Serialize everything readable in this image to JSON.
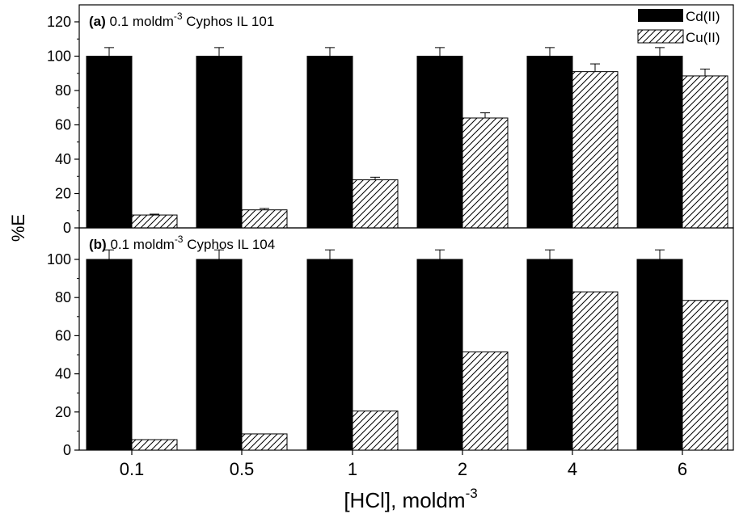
{
  "chart_data": {
    "type": "bar",
    "xlabel": "[HCl], moldm",
    "xlabel_sup": "-3",
    "ylabel": "%E",
    "categories": [
      "0.1",
      "0.5",
      "1",
      "2",
      "4",
      "6"
    ],
    "legend": {
      "placement": "top-right",
      "entries": [
        "Cd(II)",
        "Cu(II)"
      ]
    },
    "grid": false,
    "panels": [
      {
        "label_bold": "(a)",
        "label_text": " 0.1 moldm",
        "label_sup": "-3",
        "label_tail": " Cyphos IL 101",
        "ylim": [
          0,
          120
        ],
        "yticks": [
          0,
          20,
          40,
          60,
          80,
          100,
          120
        ],
        "series": [
          {
            "name": "Cd(II)",
            "fill": "#000000",
            "values": [
              100,
              100,
              100,
              100,
              100,
              100
            ],
            "errors": [
              5,
              5,
              5,
              5,
              5,
              5
            ]
          },
          {
            "name": "Cu(II)",
            "fill": "hatch",
            "values": [
              7.5,
              10.5,
              28,
              64,
              91,
              88.5
            ],
            "errors": [
              0.5,
              0.8,
              1.5,
              3,
              4.5,
              4
            ]
          }
        ]
      },
      {
        "label_bold": "(b)",
        "label_text": " 0.1 moldm",
        "label_sup": "-3",
        "label_tail": " Cyphos IL 104",
        "ylim": [
          0,
          110
        ],
        "yticks": [
          0,
          20,
          40,
          60,
          80,
          100
        ],
        "series": [
          {
            "name": "Cd(II)",
            "fill": "#000000",
            "values": [
              100,
              100,
              100,
              100,
              100,
              100
            ],
            "errors": [
              5,
              5,
              5,
              5,
              5,
              5
            ]
          },
          {
            "name": "Cu(II)",
            "fill": "hatch",
            "values": [
              5.5,
              8.5,
              20.5,
              51.5,
              83,
              78.5
            ],
            "errors": [
              0,
              0,
              0,
              0,
              0,
              0
            ]
          }
        ]
      }
    ]
  }
}
